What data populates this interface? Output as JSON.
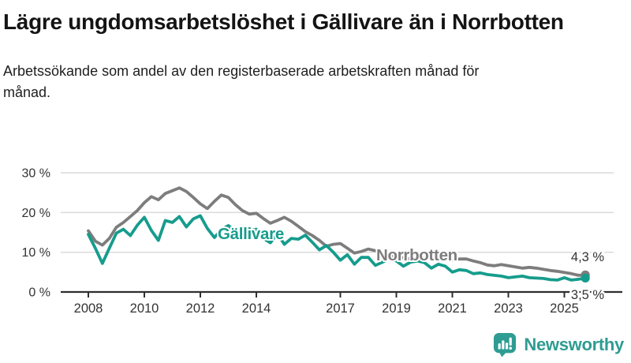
{
  "header": {
    "title": "Lägre ungdomsarbetslöshet i Gällivare än i Norrbotten",
    "subtitle": "Arbetssökande som andel av den registerbaserade arbetskraften månad för månad."
  },
  "footer": {
    "brand": "Newsworthy",
    "logo_icon": "bar-chart-speech-bubble-icon"
  },
  "colors": {
    "gallivare": "#169c8d",
    "norrbotten": "#7d7d7d",
    "grid": "#d9d9d9",
    "axis": "#2f2f2f",
    "tick_text": "#333333",
    "end_label_text": "#333333",
    "brand": "#2e9c92"
  },
  "chart_data": {
    "type": "line",
    "title": "Lägre ungdomsarbetslöshet i Gällivare än i Norrbotten",
    "xlabel": "",
    "ylabel": "Arbetssökande som andel av den registerbaserade arbetskraften",
    "grid": "horizontal",
    "legend_position": "inline-labels",
    "ylim": [
      0,
      30
    ],
    "xlim": [
      2008,
      2026
    ],
    "yticks": [
      {
        "value": 30,
        "label": "30 %"
      },
      {
        "value": 20,
        "label": "20 %"
      },
      {
        "value": 10,
        "label": "10 %"
      },
      {
        "value": 0,
        "label": "0 %"
      }
    ],
    "xticks": [
      {
        "value": 2008,
        "label": "2008"
      },
      {
        "value": 2010,
        "label": "2010"
      },
      {
        "value": 2012,
        "label": "2012"
      },
      {
        "value": 2014,
        "label": "2014"
      },
      {
        "value": 2017,
        "label": "2017"
      },
      {
        "value": 2019,
        "label": "2019"
      },
      {
        "value": 2021,
        "label": "2021"
      },
      {
        "value": 2023,
        "label": "2023"
      },
      {
        "value": 2025,
        "label": "2025"
      }
    ],
    "x": [
      2008,
      2008.25,
      2008.5,
      2008.75,
      2009,
      2009.25,
      2009.5,
      2009.75,
      2010,
      2010.25,
      2010.5,
      2010.75,
      2011,
      2011.25,
      2011.5,
      2011.75,
      2012,
      2012.25,
      2012.5,
      2012.75,
      2013,
      2013.25,
      2013.5,
      2013.75,
      2014,
      2014.25,
      2014.5,
      2014.75,
      2015,
      2015.25,
      2015.5,
      2015.75,
      2016,
      2016.25,
      2016.5,
      2016.75,
      2017,
      2017.25,
      2017.5,
      2017.75,
      2018,
      2018.25,
      2018.5,
      2018.75,
      2019,
      2019.25,
      2019.5,
      2019.75,
      2020,
      2020.25,
      2020.5,
      2020.75,
      2021,
      2021.25,
      2021.5,
      2021.75,
      2022,
      2022.25,
      2022.5,
      2022.75,
      2023,
      2023.25,
      2023.5,
      2023.75,
      2024,
      2024.25,
      2024.5,
      2024.75,
      2025,
      2025.25,
      2025.5,
      2025.75
    ],
    "series": [
      {
        "name": "Norrbotten",
        "color_key": "norrbotten",
        "end_label": "4,3 %",
        "end_value": 4.3,
        "values": [
          15.4,
          12.8,
          11.8,
          13.5,
          16.3,
          17.5,
          19.0,
          20.5,
          22.5,
          24.0,
          23.2,
          24.8,
          25.5,
          26.2,
          25.3,
          23.8,
          22.2,
          21.0,
          22.8,
          24.4,
          23.8,
          22.0,
          20.5,
          19.6,
          19.8,
          18.5,
          17.3,
          18.0,
          18.8,
          17.8,
          16.5,
          15.2,
          14.2,
          13.0,
          11.5,
          12.0,
          12.2,
          11.0,
          9.8,
          10.2,
          10.8,
          10.4,
          9.6,
          9.2,
          9.0,
          8.6,
          8.3,
          8.5,
          8.4,
          8.8,
          8.6,
          8.2,
          7.9,
          8.3,
          8.3,
          7.8,
          7.4,
          6.8,
          6.6,
          6.9,
          6.6,
          6.3,
          6.0,
          6.2,
          6.0,
          5.7,
          5.4,
          5.2,
          4.9,
          4.6,
          4.2,
          4.3
        ]
      },
      {
        "name": "Gällivare",
        "color_key": "gallivare",
        "end_label": "3,5 %",
        "end_value": 3.5,
        "values": [
          14.5,
          11.0,
          7.2,
          11.0,
          14.8,
          15.8,
          14.2,
          16.8,
          18.8,
          15.5,
          13.0,
          18.0,
          17.5,
          19.0,
          16.4,
          18.4,
          19.2,
          16.0,
          13.7,
          15.7,
          16.7,
          15.4,
          13.7,
          15.3,
          15.8,
          13.5,
          12.4,
          14.7,
          12.0,
          13.5,
          13.3,
          14.3,
          12.5,
          10.6,
          11.7,
          10.0,
          8.0,
          9.4,
          7.0,
          8.7,
          8.7,
          6.7,
          7.5,
          8.4,
          7.8,
          6.5,
          7.5,
          7.8,
          7.4,
          6.0,
          7.0,
          6.5,
          5.0,
          5.6,
          5.4,
          4.6,
          4.8,
          4.4,
          4.2,
          4.0,
          3.6,
          3.8,
          4.0,
          3.6,
          3.5,
          3.4,
          3.1,
          3.0,
          3.6,
          3.0,
          3.2,
          3.5
        ]
      }
    ]
  }
}
